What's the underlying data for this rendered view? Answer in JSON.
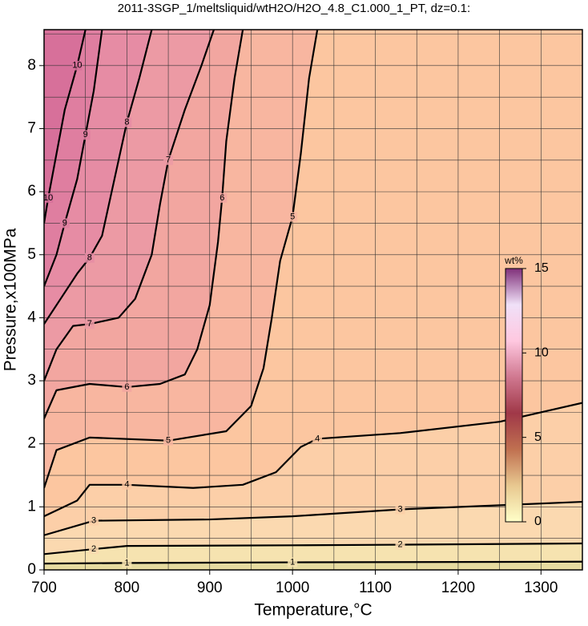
{
  "chart_data": {
    "type": "contour",
    "title": "2011-3SGP_1/meltsliquid/wtH2O/H2O_4.8_C1.000_1_PT, dz=0.1:",
    "xlabel": "Temperature,°C",
    "ylabel": "Pressure,x100MPa",
    "xlim": [
      700,
      1350
    ],
    "ylim": [
      0,
      8.57
    ],
    "xticks": [
      700,
      800,
      900,
      1000,
      1100,
      1200,
      1300
    ],
    "yticks": [
      0,
      1,
      2,
      3,
      4,
      5,
      6,
      7,
      8
    ],
    "xminorticks": [
      750,
      850,
      950,
      1050,
      1150,
      1250,
      1350
    ],
    "yminorticks": [
      0.5,
      1.5,
      2.5,
      3.5,
      4.5,
      5.5,
      6.5,
      7.5,
      8.5
    ],
    "grid": true,
    "background": "#e6dba0",
    "contours": [
      {
        "level": 1,
        "fill": "#f6e3b0",
        "x": [
          700,
          800,
          1000,
          1350
        ],
        "y": [
          0.1,
          0.11,
          0.12,
          0.13
        ]
      },
      {
        "level": 2,
        "fill": "#fbd9b0",
        "x": [
          700,
          760,
          800,
          1000,
          1130,
          1350
        ],
        "y": [
          0.25,
          0.33,
          0.38,
          0.39,
          0.4,
          0.42
        ]
      },
      {
        "level": 3,
        "fill": "#fccfa8",
        "x": [
          700,
          760,
          900,
          1000,
          1130,
          1350
        ],
        "y": [
          0.55,
          0.78,
          0.8,
          0.85,
          0.96,
          1.08
        ]
      },
      {
        "level": 4,
        "fill": "#fcc6a0",
        "x": [
          700,
          740,
          755,
          800,
          880,
          940,
          980,
          1010,
          1030,
          1130,
          1250,
          1350
        ],
        "y": [
          0.85,
          1.1,
          1.35,
          1.35,
          1.3,
          1.35,
          1.55,
          1.95,
          2.08,
          2.17,
          2.35,
          2.65
        ]
      },
      {
        "level": 5,
        "fill": "#f8b6a0",
        "x": [
          700,
          715,
          755,
          850,
          920,
          950,
          965,
          975,
          985,
          1000,
          1010,
          1020,
          1030
        ],
        "y": [
          1.3,
          1.9,
          2.1,
          2.05,
          2.2,
          2.6,
          3.2,
          4.0,
          4.9,
          5.6,
          6.6,
          7.8,
          8.57
        ]
      },
      {
        "level": 6,
        "fill": "#f2a6a0",
        "x": [
          700,
          715,
          755,
          800,
          840,
          870,
          885,
          900,
          910,
          915,
          920,
          930,
          940
        ],
        "y": [
          2.4,
          2.85,
          2.95,
          2.9,
          2.95,
          3.1,
          3.5,
          4.2,
          5.2,
          5.9,
          6.8,
          7.8,
          8.57
        ]
      },
      {
        "level": 7,
        "fill": "#ec9aa4",
        "x": [
          700,
          715,
          735,
          755,
          790,
          810,
          830,
          840,
          850,
          870,
          890,
          905
        ],
        "y": [
          3.0,
          3.5,
          3.87,
          3.9,
          4.0,
          4.3,
          5.0,
          5.8,
          6.5,
          7.3,
          8.0,
          8.57
        ]
      },
      {
        "level": 8,
        "fill": "#e68ca4",
        "x": [
          700,
          720,
          740,
          755,
          770,
          780,
          790,
          800,
          815,
          830
        ],
        "y": [
          3.9,
          4.3,
          4.7,
          4.95,
          5.3,
          5.9,
          6.5,
          7.1,
          7.8,
          8.57
        ]
      },
      {
        "level": 9,
        "fill": "#df7ea0",
        "x": [
          700,
          715,
          725,
          740,
          750,
          760,
          770
        ],
        "y": [
          4.5,
          5.0,
          5.5,
          6.2,
          6.9,
          7.6,
          8.57
        ]
      },
      {
        "level": 10,
        "fill": "#d7709a",
        "x": [
          700,
          705,
          715,
          725,
          740,
          750
        ],
        "y": [
          5.5,
          5.9,
          6.6,
          7.3,
          8.0,
          8.57
        ]
      }
    ],
    "colorbar": {
      "label": "wt%",
      "lim": [
        0,
        15
      ],
      "ticks": [
        0,
        5,
        10,
        15
      ],
      "colors": [
        "#ffffc8",
        "#e8c890",
        "#c07050",
        "#a03848",
        "#d07890",
        "#ffc8e0",
        "#f0e0f8",
        "#80307a"
      ]
    }
  }
}
